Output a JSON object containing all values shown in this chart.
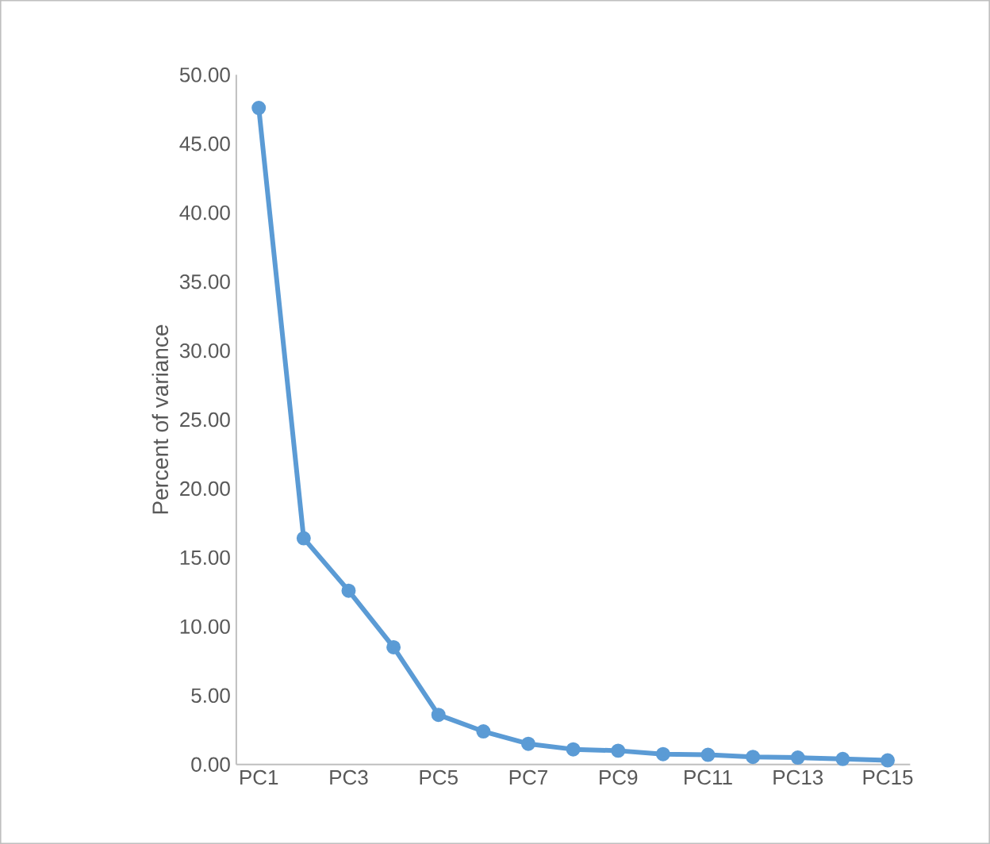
{
  "chart_data": {
    "type": "line",
    "ylabel": "Percent of variance",
    "categories": [
      "PC1",
      null,
      "PC3",
      null,
      "PC5",
      null,
      "PC7",
      null,
      "PC9",
      null,
      "PC11",
      null,
      "PC13",
      null,
      "PC15"
    ],
    "series": [
      {
        "color": "#5b9bd5",
        "values": [
          47.6,
          16.4,
          12.6,
          8.5,
          3.6,
          2.4,
          1.5,
          1.1,
          1.0,
          0.75,
          0.7,
          0.55,
          0.5,
          0.4,
          0.3
        ]
      }
    ],
    "ylim": [
      0,
      50
    ],
    "yticks": [
      {
        "value": 0,
        "label": "0.00"
      },
      {
        "value": 5,
        "label": "5.00"
      },
      {
        "value": 10,
        "label": "10.00"
      },
      {
        "value": 15,
        "label": "15.00"
      },
      {
        "value": 20,
        "label": "20.00"
      },
      {
        "value": 25,
        "label": "25.00"
      },
      {
        "value": 30,
        "label": "30.00"
      },
      {
        "value": 35,
        "label": "35.00"
      },
      {
        "value": 40,
        "label": "40.00"
      },
      {
        "value": 45,
        "label": "45.00"
      },
      {
        "value": 50,
        "label": "50.00"
      }
    ],
    "marker": "circle",
    "line_style": "solid",
    "grid": false,
    "legend": false
  }
}
